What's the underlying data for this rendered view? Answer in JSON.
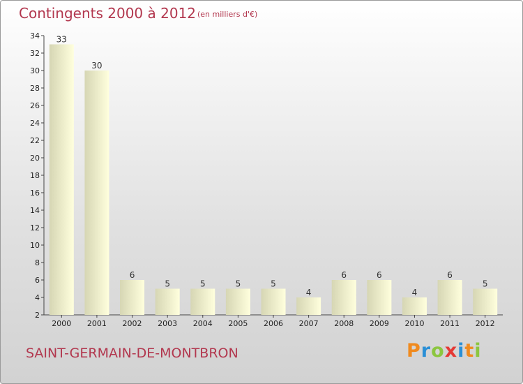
{
  "header": {
    "title": "Contingents 2000 à 2012",
    "unit": "(en milliers d'€)"
  },
  "footer": {
    "commune": "SAINT-GERMAIN-DE-MONTBRON",
    "logo_letters": [
      {
        "char": "P",
        "color": "#f08a1e"
      },
      {
        "char": "r",
        "color": "#2a8fd6"
      },
      {
        "char": "o",
        "color": "#8cc63f"
      },
      {
        "char": "x",
        "color": "#e53935"
      },
      {
        "char": "i",
        "color": "#2a8fd6"
      },
      {
        "char": "t",
        "color": "#f08a1e"
      },
      {
        "char": "i",
        "color": "#8cc63f"
      }
    ]
  },
  "chart_data": {
    "type": "bar",
    "categories": [
      "2000",
      "2001",
      "2002",
      "2003",
      "2004",
      "2005",
      "2006",
      "2007",
      "2008",
      "2009",
      "2010",
      "2011",
      "2012"
    ],
    "values": [
      33,
      30,
      6,
      5,
      5,
      5,
      5,
      4,
      6,
      6,
      4,
      6,
      5
    ],
    "title": "Contingents 2000 à 2012",
    "xlabel": "",
    "ylabel": "",
    "ylim": [
      2,
      34
    ],
    "yticks": [
      2,
      4,
      6,
      8,
      10,
      12,
      14,
      16,
      18,
      20,
      22,
      24,
      26,
      28,
      30,
      32,
      34
    ],
    "grid": false,
    "bar_color_light": "#ffffdd",
    "bar_color_dark": "#d6d6b4"
  }
}
